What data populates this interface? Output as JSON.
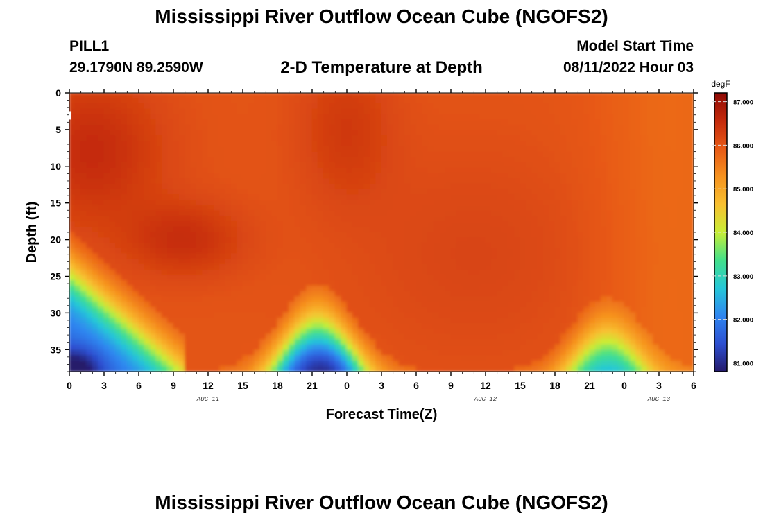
{
  "header": {
    "title": "Mississippi River Outflow Ocean Cube (NGOFS2)",
    "station": "PILL1",
    "coords": "29.1790N  89.2590W",
    "subtitle": "2-D Temperature at Depth",
    "model_start_label": "Model Start Time",
    "model_start_value": "08/11/2022 Hour 03"
  },
  "footer": {
    "title": "Mississippi River Outflow Ocean Cube (NGOFS2)"
  },
  "chart_data": {
    "type": "heatmap",
    "xlabel": "Forecast Time(Z)",
    "ylabel": "Depth (ft)",
    "x_ticks": [
      "0",
      "3",
      "6",
      "9",
      "12",
      "15",
      "18",
      "21",
      "0",
      "3",
      "6",
      "9",
      "12",
      "15",
      "18",
      "21",
      "0",
      "3",
      "6"
    ],
    "x_range_hours": [
      0,
      54
    ],
    "date_labels": [
      {
        "label": "AUG 11",
        "hour": 12
      },
      {
        "label": "AUG 12",
        "hour": 36
      },
      {
        "label": "AUG 13",
        "hour": 51
      }
    ],
    "y_ticks": [
      "0",
      "5",
      "10",
      "15",
      "20",
      "25",
      "30",
      "35"
    ],
    "y_range": [
      0,
      38
    ],
    "y_inverted": true,
    "colorbar": {
      "unit": "degF",
      "ticks": [
        "87.000",
        "86.000",
        "85.000",
        "84.000",
        "83.000",
        "82.000",
        "81.000"
      ],
      "range": [
        80.8,
        87.2
      ]
    },
    "colormap": [
      "#251a6b",
      "#2d4fd0",
      "#2f86f0",
      "#25c7d8",
      "#43e08a",
      "#c8ee36",
      "#f8c030",
      "#f6921f",
      "#e85a16",
      "#c42a0c",
      "#8e0a05"
    ],
    "field_features": [
      {
        "kind": "warm-core",
        "center_hour": 2,
        "center_depth": 8,
        "value": 86.9
      },
      {
        "kind": "warm-core",
        "center_hour": 10,
        "center_depth": 21,
        "value": 86.7
      },
      {
        "kind": "warm-core",
        "center_hour": 24,
        "center_depth": 5,
        "value": 86.6
      },
      {
        "kind": "cool-pool",
        "center_hour": 0,
        "center_depth": 38,
        "value": 81.0
      },
      {
        "kind": "cool-pool",
        "center_hour": 21.5,
        "center_depth": 37,
        "value": 81.6
      },
      {
        "kind": "cool-pool",
        "center_hour": 49,
        "center_depth": 36,
        "value": 82.2
      }
    ]
  }
}
